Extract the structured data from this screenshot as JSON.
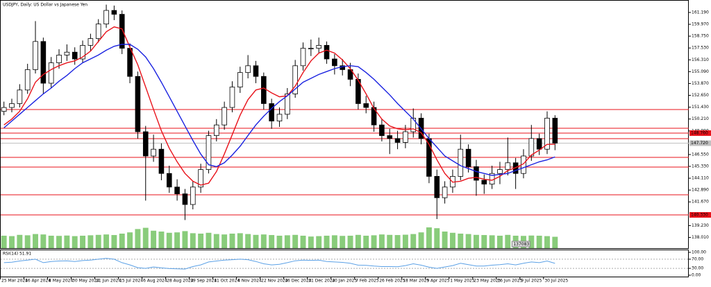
{
  "chart_data": {
    "type": "candlestick",
    "title": "USDJPY, Daily:  US Dollar vs Japanese Yen",
    "categories": [
      "25 Mar 2024",
      null,
      null,
      "16 Apr 2024",
      null,
      null,
      "8 May 2024",
      null,
      null,
      "30 May 2024",
      null,
      null,
      "21 Jun 2024",
      null,
      null,
      "15 Jul 2024",
      null,
      null,
      "6 Aug 2024",
      null,
      null,
      "28 Aug 2024",
      null,
      null,
      "19 Sep 2024",
      null,
      null,
      "11 Oct 2024",
      null,
      null,
      "4 Nov 2024",
      null,
      null,
      "22 Nov 2024",
      null,
      null,
      "16 Dec 2024",
      null,
      null,
      "31 Dec 2024",
      null,
      null,
      "20 Jan 2025",
      null,
      null,
      "7 Feb 2025",
      null,
      null,
      "26 Feb 2025",
      null,
      null,
      "18 Mar 2025",
      null,
      null,
      "9 Apr 2025",
      null,
      null,
      "1 May 2025",
      null,
      null,
      "23 May 2025",
      null,
      null,
      "16 Jun 2025",
      null,
      null,
      "9 Jul 2025",
      null,
      null,
      "30 Jul 2025",
      null
    ],
    "ohlc": [
      [
        151.0,
        152.0,
        150.6,
        151.4
      ],
      [
        151.4,
        152.3,
        150.9,
        151.8
      ],
      [
        151.8,
        153.8,
        151.4,
        153.2
      ],
      [
        153.2,
        155.9,
        152.8,
        155.3
      ],
      [
        155.3,
        160.3,
        154.9,
        158.2
      ],
      [
        158.2,
        158.6,
        152.8,
        153.9
      ],
      [
        153.9,
        156.6,
        153.4,
        156.0
      ],
      [
        156.0,
        157.4,
        155.4,
        156.8
      ],
      [
        156.8,
        157.9,
        156.2,
        157.1
      ],
      [
        157.1,
        157.6,
        155.8,
        156.4
      ],
      [
        156.4,
        158.3,
        156.0,
        157.8
      ],
      [
        157.8,
        159.0,
        157.2,
        158.5
      ],
      [
        158.5,
        160.5,
        158.1,
        160.0
      ],
      [
        160.0,
        162.0,
        159.6,
        161.4
      ],
      [
        161.4,
        161.9,
        160.4,
        161.0
      ],
      [
        161.0,
        161.4,
        156.9,
        157.5
      ],
      [
        157.5,
        158.0,
        153.9,
        154.6
      ],
      [
        154.6,
        155.1,
        148.2,
        148.9
      ],
      [
        148.9,
        149.5,
        141.8,
        146.4
      ],
      [
        146.4,
        148.6,
        145.8,
        147.1
      ],
      [
        147.1,
        147.7,
        143.9,
        144.6
      ],
      [
        144.6,
        145.4,
        142.6,
        143.2
      ],
      [
        143.2,
        144.0,
        141.8,
        142.5
      ],
      [
        142.5,
        143.0,
        139.8,
        141.4
      ],
      [
        141.4,
        143.8,
        140.9,
        143.2
      ],
      [
        143.2,
        145.6,
        142.6,
        145.0
      ],
      [
        145.0,
        149.0,
        144.6,
        148.5
      ],
      [
        148.5,
        150.2,
        147.9,
        149.6
      ],
      [
        149.6,
        152.0,
        149.1,
        151.4
      ],
      [
        151.4,
        154.1,
        150.9,
        153.5
      ],
      [
        153.5,
        155.6,
        152.9,
        155.0
      ],
      [
        155.0,
        156.8,
        154.4,
        155.7
      ],
      [
        155.7,
        156.2,
        153.9,
        154.6
      ],
      [
        154.6,
        155.0,
        151.2,
        151.8
      ],
      [
        151.8,
        152.3,
        149.2,
        150.0
      ],
      [
        150.0,
        151.4,
        149.4,
        150.7
      ],
      [
        150.7,
        153.4,
        150.2,
        152.8
      ],
      [
        152.8,
        156.3,
        152.4,
        155.7
      ],
      [
        155.7,
        158.1,
        155.2,
        157.5
      ],
      [
        157.5,
        158.4,
        156.7,
        157.5
      ],
      [
        157.5,
        158.6,
        157.0,
        157.8
      ],
      [
        157.8,
        158.2,
        155.9,
        156.4
      ],
      [
        156.4,
        156.9,
        154.8,
        155.7
      ],
      [
        155.7,
        156.4,
        154.7,
        155.3
      ],
      [
        155.3,
        156.0,
        153.6,
        154.3
      ],
      [
        154.3,
        154.9,
        151.2,
        151.8
      ],
      [
        151.8,
        152.6,
        150.8,
        151.4
      ],
      [
        151.4,
        152.0,
        148.9,
        149.6
      ],
      [
        149.6,
        150.2,
        147.9,
        148.5
      ],
      [
        148.5,
        149.2,
        146.6,
        148.2
      ],
      [
        148.2,
        149.0,
        147.1,
        147.8
      ],
      [
        147.8,
        149.6,
        147.2,
        148.9
      ],
      [
        148.9,
        151.3,
        148.3,
        150.3
      ],
      [
        150.3,
        150.8,
        147.6,
        148.2
      ],
      [
        148.2,
        148.7,
        143.6,
        144.3
      ],
      [
        144.3,
        145.0,
        139.9,
        142.1
      ],
      [
        142.1,
        143.8,
        141.5,
        143.2
      ],
      [
        143.2,
        145.0,
        142.6,
        144.3
      ],
      [
        144.3,
        148.6,
        143.9,
        147.1
      ],
      [
        147.1,
        147.6,
        144.7,
        145.3
      ],
      [
        145.3,
        146.0,
        142.3,
        143.9
      ],
      [
        143.9,
        144.5,
        142.5,
        143.5
      ],
      [
        143.5,
        145.4,
        143.0,
        144.6
      ],
      [
        144.6,
        145.8,
        143.5,
        145.0
      ],
      [
        145.0,
        148.3,
        144.4,
        145.7
      ],
      [
        145.7,
        146.2,
        143.0,
        144.6
      ],
      [
        144.6,
        147.1,
        144.1,
        146.4
      ],
      [
        146.4,
        149.6,
        145.9,
        148.2
      ],
      [
        148.2,
        148.7,
        146.5,
        147.1
      ],
      [
        147.1,
        151.0,
        146.6,
        150.3
      ],
      [
        150.3,
        150.6,
        147.0,
        147.72
      ]
    ],
    "series": [
      {
        "color": "#e8121a",
        "values": [
          149.6,
          150.2,
          151.0,
          152.3,
          154.0,
          154.8,
          155.3,
          155.7,
          156.0,
          156.2,
          156.6,
          157.2,
          158.2,
          159.2,
          159.7,
          159.5,
          157.6,
          155.8,
          153.5,
          151.2,
          149.0,
          147.2,
          145.8,
          144.6,
          143.8,
          143.4,
          143.6,
          144.8,
          146.6,
          148.6,
          150.6,
          152.2,
          153.2,
          153.4,
          152.9,
          152.5,
          152.6,
          153.6,
          155.0,
          156.2,
          157.0,
          157.3,
          157.0,
          156.3,
          155.4,
          154.2,
          152.8,
          151.3,
          150.2,
          149.5,
          149.2,
          149.1,
          149.2,
          148.8,
          147.6,
          146.0,
          144.6,
          143.7,
          143.8,
          144.1,
          144.2,
          144.0,
          143.9,
          144.3,
          144.9,
          145.2,
          145.6,
          146.5,
          147.0,
          147.6,
          147.6
        ]
      },
      {
        "color": "#1a22e0",
        "values": [
          149.3,
          150.0,
          150.7,
          151.4,
          152.1,
          152.8,
          153.4,
          154.1,
          154.7,
          155.4,
          156.0,
          156.4,
          156.8,
          157.3,
          157.7,
          157.9,
          157.9,
          157.4,
          156.6,
          155.4,
          154.0,
          152.5,
          151.0,
          149.5,
          148.0,
          146.6,
          145.5,
          145.3,
          145.7,
          146.5,
          147.4,
          148.5,
          149.6,
          150.5,
          151.3,
          152.0,
          152.6,
          153.3,
          154.0,
          154.4,
          154.8,
          155.1,
          155.4,
          155.6,
          155.7,
          155.6,
          155.0,
          154.3,
          153.5,
          152.7,
          151.8,
          151.0,
          150.2,
          149.2,
          148.2,
          147.3,
          146.4,
          145.9,
          145.4,
          145.1,
          144.8,
          144.6,
          144.4,
          144.5,
          144.6,
          144.9,
          145.2,
          145.5,
          145.8,
          146.0,
          146.3
        ]
      }
    ],
    "volume": [
      150000,
      145000,
      160000,
      155000,
      170000,
      165000,
      150000,
      148000,
      152000,
      145000,
      150000,
      155000,
      160000,
      165000,
      158000,
      175000,
      190000,
      230000,
      245000,
      210000,
      200000,
      185000,
      190000,
      205000,
      180000,
      175000,
      185000,
      170000,
      165000,
      175000,
      180000,
      170000,
      160000,
      165000,
      158000,
      150000,
      155000,
      160000,
      150000,
      140000,
      145000,
      150000,
      155000,
      148000,
      150000,
      160000,
      150000,
      155000,
      165000,
      160000,
      158000,
      162000,
      170000,
      190000,
      250000,
      240000,
      200000,
      185000,
      175000,
      170000,
      160000,
      158000,
      155000,
      150000,
      160000,
      150000,
      148000,
      152000,
      150000,
      145000,
      137083
    ],
    "rsi_label": "RSI(14) 51.91",
    "rsi": [
      55,
      57,
      62,
      66,
      70,
      55,
      60,
      62,
      63,
      60,
      64,
      66,
      70,
      74,
      70,
      55,
      45,
      33,
      30,
      36,
      32,
      29,
      28,
      27,
      38,
      45,
      58,
      62,
      66,
      68,
      70,
      68,
      60,
      50,
      45,
      48,
      55,
      63,
      66,
      65,
      66,
      60,
      58,
      56,
      52,
      44,
      43,
      40,
      38,
      38,
      37,
      42,
      50,
      44,
      35,
      30,
      36,
      42,
      52,
      46,
      40,
      40,
      44,
      46,
      50,
      45,
      52,
      58,
      55,
      62,
      51.91
    ],
    "rsi_ylim": [
      0,
      100
    ],
    "rsi_yticks": [
      {
        "value": 100,
        "label": "100.00"
      },
      {
        "value": 70,
        "label": "70.00"
      },
      {
        "value": 30,
        "label": "30.00"
      },
      {
        "value": 0,
        "label": "0.00"
      }
    ],
    "levels": [
      {
        "value": 151.19
      },
      {
        "value": 149.26
      },
      {
        "value": 148.76,
        "label": "148.760"
      },
      {
        "value": 148.19
      },
      {
        "value": 146.26
      },
      {
        "value": 145.26
      },
      {
        "value": 142.4
      },
      {
        "value": 140.33,
        "label": "140.330"
      }
    ],
    "current_price": {
      "value": 147.72,
      "label": "147.720"
    },
    "level_color": "#e8121a",
    "volume_color": "#6cbf5a",
    "rsi_color": "#5aa0e6",
    "ylim": [
      136.9,
      162.26
    ],
    "yticks": [
      {
        "value": 161.19,
        "label": "161.190"
      },
      {
        "value": 159.97,
        "label": "159.970"
      },
      {
        "value": 158.75,
        "label": "158.750"
      },
      {
        "value": 157.53,
        "label": "157.530"
      },
      {
        "value": 156.31,
        "label": "156.310"
      },
      {
        "value": 155.09,
        "label": "155.090"
      },
      {
        "value": 153.87,
        "label": "153.870"
      },
      {
        "value": 152.65,
        "label": "152.650"
      },
      {
        "value": 151.43,
        "label": "151.430"
      },
      {
        "value": 150.21,
        "label": "150.210"
      },
      {
        "value": 148.99,
        "label": "148.990"
      },
      {
        "value": 146.55,
        "label": "146.550"
      },
      {
        "value": 145.33,
        "label": "145.330"
      },
      {
        "value": 144.11,
        "label": "144.110"
      },
      {
        "value": 142.89,
        "label": "142.890"
      },
      {
        "value": 141.67,
        "label": "141.670"
      },
      {
        "value": 139.23,
        "label": "139.230"
      },
      {
        "value": 138.01,
        "label": "138.010"
      }
    ]
  }
}
